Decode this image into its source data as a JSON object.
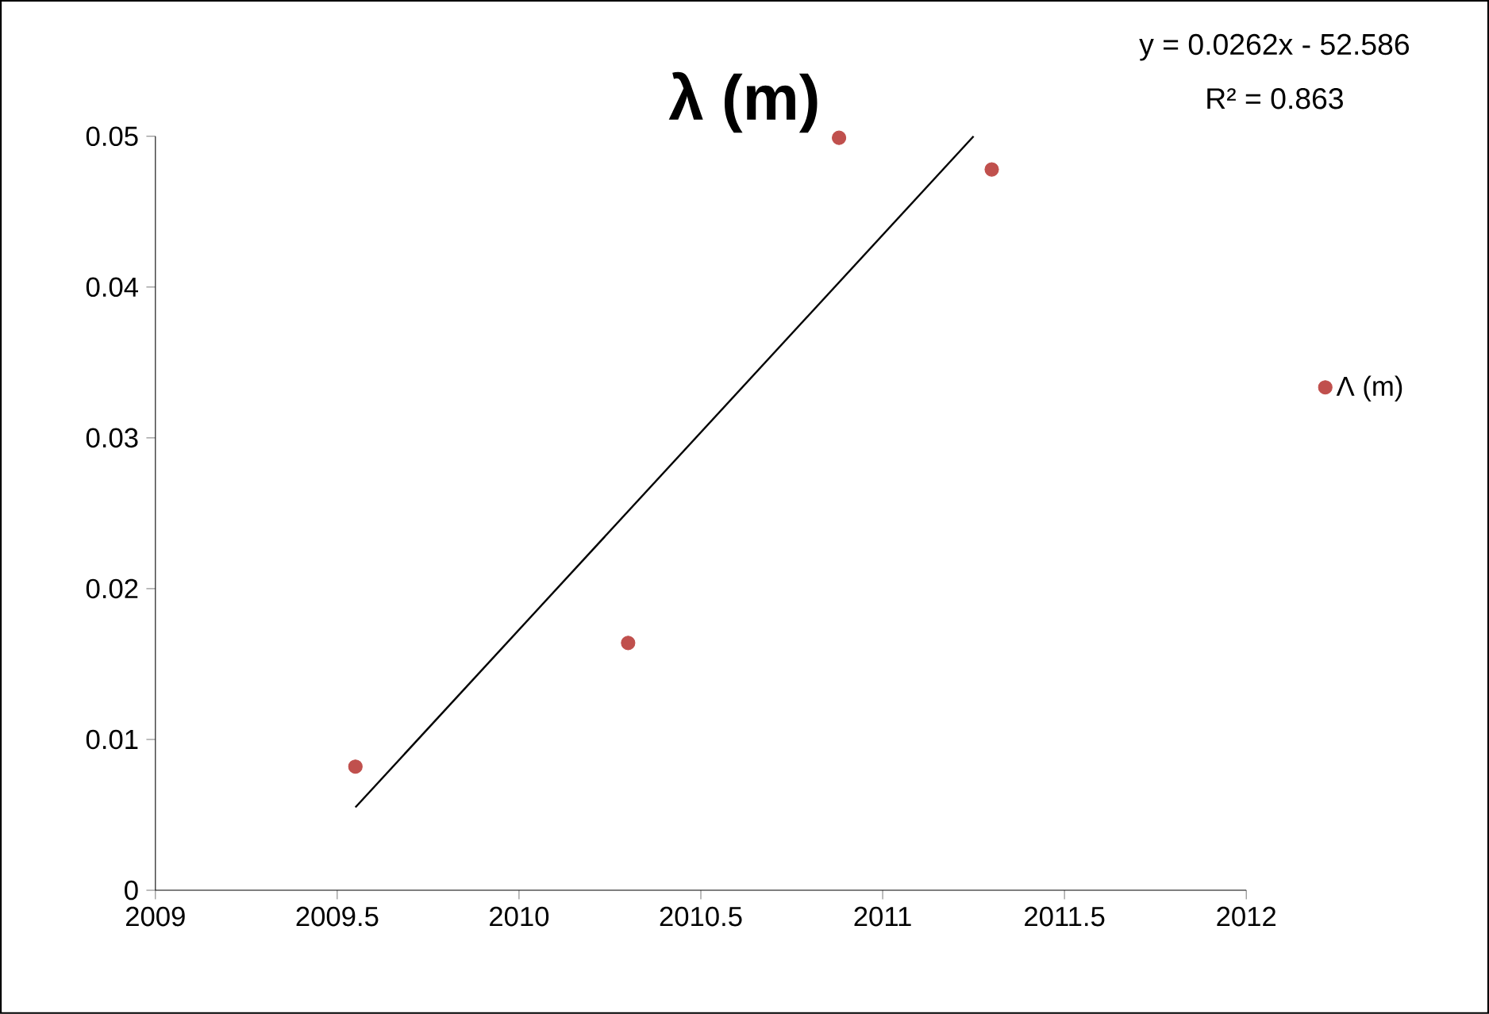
{
  "chart_data": {
    "type": "scatter",
    "title": "λ (m)",
    "annotations": [
      "y = 0.0262x - 52.586",
      "R² = 0.863"
    ],
    "series": [
      {
        "name": "Λ (m)",
        "color": "#c0504d",
        "marker": "circle",
        "x": [
          2009.55,
          2010.3,
          2010.88,
          2011.3
        ],
        "values": [
          0.0082,
          0.0164,
          0.0499,
          0.0478
        ]
      },
      {
        "type": "line",
        "color": "#000000",
        "marker": "none",
        "x": [
          2009.55,
          2011.25
        ],
        "values": [
          0.0055,
          0.05
        ]
      }
    ],
    "xlim": [
      2009,
      2012
    ],
    "xticks": [
      2009,
      2009.5,
      2010,
      2010.5,
      2011,
      2011.5,
      2012
    ],
    "ylim": [
      0,
      0.05
    ],
    "yticks": [
      0,
      0.01,
      0.02,
      0.03,
      0.04,
      0.05
    ],
    "grid": false,
    "legend": "right"
  }
}
